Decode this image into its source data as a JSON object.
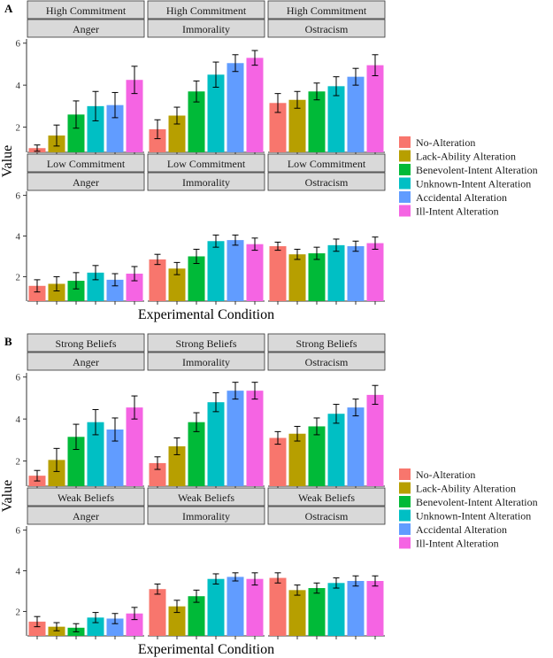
{
  "figure": {
    "panel_letters": [
      "A",
      "B"
    ],
    "x_axis_title": "Experimental Condition",
    "y_axis_title": "Value"
  },
  "legend": {
    "entries": [
      {
        "label": "No-Alteration",
        "color": "#F8766D"
      },
      {
        "label": "Lack-Ability Alteration",
        "color": "#B79F00"
      },
      {
        "label": "Benevolent-Intent Alteration",
        "color": "#00BA38"
      },
      {
        "label": "Unknown-Intent Alteration",
        "color": "#00BFC4"
      },
      {
        "label": "Accidental Alteration",
        "color": "#619CFF"
      },
      {
        "label": "Ill-Intent Alteration",
        "color": "#F564E3"
      }
    ]
  },
  "chart_data": [
    {
      "type": "bar",
      "panel": "A",
      "xlabel": "Experimental Condition",
      "ylabel": "Value",
      "yticks": [
        2,
        4,
        6
      ],
      "rows": [
        {
          "strip": "High Commitment",
          "facets": [
            {
              "strip": "Anger",
              "values": [
                1.0,
                1.6,
                2.6,
                3.0,
                3.05,
                4.25
              ],
              "errors": [
                0.15,
                0.5,
                0.65,
                0.7,
                0.6,
                0.65
              ]
            },
            {
              "strip": "Immorality",
              "values": [
                1.9,
                2.55,
                3.7,
                4.5,
                5.05,
                5.3
              ],
              "errors": [
                0.45,
                0.4,
                0.5,
                0.6,
                0.4,
                0.35
              ]
            },
            {
              "strip": "Ostracism",
              "values": [
                3.15,
                3.3,
                3.7,
                3.95,
                4.4,
                4.95
              ],
              "errors": [
                0.45,
                0.4,
                0.4,
                0.45,
                0.4,
                0.5
              ]
            }
          ]
        },
        {
          "strip": "Low Commitment",
          "facets": [
            {
              "strip": "Anger",
              "values": [
                1.55,
                1.65,
                1.8,
                2.2,
                1.85,
                2.15
              ],
              "errors": [
                0.3,
                0.35,
                0.4,
                0.35,
                0.3,
                0.35
              ]
            },
            {
              "strip": "Immorality",
              "values": [
                2.85,
                2.4,
                3.0,
                3.75,
                3.8,
                3.6
              ],
              "errors": [
                0.25,
                0.3,
                0.35,
                0.3,
                0.25,
                0.3
              ]
            },
            {
              "strip": "Ostracism",
              "values": [
                3.5,
                3.1,
                3.15,
                3.55,
                3.5,
                3.65
              ],
              "errors": [
                0.2,
                0.25,
                0.3,
                0.3,
                0.25,
                0.3
              ]
            }
          ]
        }
      ]
    },
    {
      "type": "bar",
      "panel": "B",
      "xlabel": "Experimental Condition",
      "ylabel": "Value",
      "yticks": [
        2,
        4,
        6
      ],
      "rows": [
        {
          "strip": "Strong Beliefs",
          "facets": [
            {
              "strip": "Anger",
              "values": [
                1.3,
                2.05,
                3.15,
                3.85,
                3.5,
                4.55
              ],
              "errors": [
                0.25,
                0.55,
                0.6,
                0.6,
                0.55,
                0.55
              ]
            },
            {
              "strip": "Immorality",
              "values": [
                1.9,
                2.7,
                3.85,
                4.8,
                5.35,
                5.35
              ],
              "errors": [
                0.3,
                0.4,
                0.45,
                0.45,
                0.4,
                0.4
              ]
            },
            {
              "strip": "Ostracism",
              "values": [
                3.1,
                3.3,
                3.65,
                4.25,
                4.55,
                5.15
              ],
              "errors": [
                0.3,
                0.35,
                0.4,
                0.45,
                0.4,
                0.45
              ]
            }
          ]
        },
        {
          "strip": "Weak Beliefs",
          "facets": [
            {
              "strip": "Anger",
              "values": [
                1.5,
                1.25,
                1.2,
                1.7,
                1.65,
                1.9
              ],
              "errors": [
                0.25,
                0.2,
                0.2,
                0.25,
                0.25,
                0.3
              ]
            },
            {
              "strip": "Immorality",
              "values": [
                3.1,
                2.25,
                2.75,
                3.6,
                3.7,
                3.6
              ],
              "errors": [
                0.25,
                0.3,
                0.3,
                0.25,
                0.2,
                0.3
              ]
            },
            {
              "strip": "Ostracism",
              "values": [
                3.65,
                3.05,
                3.15,
                3.4,
                3.5,
                3.5
              ],
              "errors": [
                0.25,
                0.25,
                0.25,
                0.25,
                0.25,
                0.25
              ]
            }
          ]
        }
      ]
    }
  ]
}
